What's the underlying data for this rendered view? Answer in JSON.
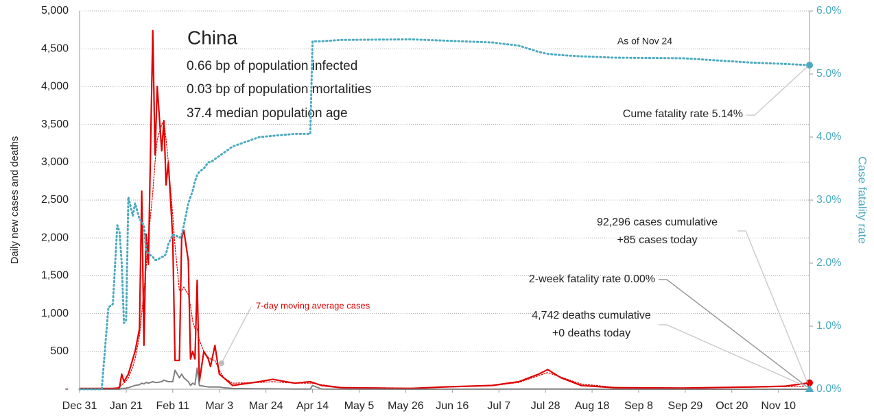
{
  "chart_data": {
    "type": "line",
    "title": "China",
    "subtitle_lines": [
      "0.66 bp of population infected",
      "0.03 bp of population mortalities",
      "37.4 median population age"
    ],
    "y_label": "Daily new cases and deaths",
    "y2_label": "Case fatality rate",
    "annotations": [
      "As of Nov 24",
      "Cume fatality rate 5.14%",
      "92,296 cases cumulative",
      "+85 cases today",
      "2-week fatality rate 0.00%",
      "4,742 deaths cumulative",
      "+0 deaths today"
    ],
    "two_week_fatality_rate": 0,
    "x": [
      0,
      10,
      13,
      15,
      17,
      18,
      19,
      20,
      21,
      22,
      24,
      25,
      27,
      28,
      29,
      30,
      31,
      33,
      34,
      35,
      37,
      38,
      39,
      40,
      42,
      43,
      45,
      46,
      47,
      49,
      50,
      51,
      52,
      53,
      54,
      56,
      58,
      59,
      61,
      63,
      65,
      69,
      81,
      87,
      97,
      104,
      105,
      109,
      118,
      149,
      164,
      186,
      198,
      207,
      211,
      217,
      226,
      241,
      272,
      303,
      318,
      329
    ],
    "xlim": [
      0,
      329
    ],
    "xticks": [
      {
        "value": 0,
        "label": "Dec 31"
      },
      {
        "value": 21,
        "label": "Jan 21"
      },
      {
        "value": 42,
        "label": "Feb 11"
      },
      {
        "value": 63,
        "label": "Mar 3"
      },
      {
        "value": 84,
        "label": "Mar 24"
      },
      {
        "value": 105,
        "label": "Apr 14"
      },
      {
        "value": 126,
        "label": "May 5"
      },
      {
        "value": 147,
        "label": "May 26"
      },
      {
        "value": 168,
        "label": "Jun 16"
      },
      {
        "value": 189,
        "label": "Jul 7"
      },
      {
        "value": 210,
        "label": "Jul 28"
      },
      {
        "value": 231,
        "label": "Aug 18"
      },
      {
        "value": 252,
        "label": "Sep 8"
      },
      {
        "value": 273,
        "label": "Sep 29"
      },
      {
        "value": 294,
        "label": "Oct 20"
      },
      {
        "value": 315,
        "label": "Nov 10"
      }
    ],
    "ylim": [
      0,
      5000
    ],
    "yticks": [
      {
        "value": 0,
        "label": "-"
      },
      500,
      {
        "value": 1000,
        "label": "1,000"
      },
      {
        "value": 1500,
        "label": "1,500"
      },
      {
        "value": 2000,
        "label": "2,000"
      },
      {
        "value": 2500,
        "label": "2,500"
      },
      {
        "value": 3000,
        "label": "3,000"
      },
      {
        "value": 3500,
        "label": "3,500"
      },
      {
        "value": 4000,
        "label": "4,000"
      },
      {
        "value": 4500,
        "label": "4,500"
      },
      {
        "value": 5000,
        "label": "5,000"
      }
    ],
    "y2lim": [
      0,
      6
    ],
    "y2ticks": [
      {
        "value": 0,
        "label": "0.0%"
      },
      {
        "value": 1,
        "label": "1.0%"
      },
      {
        "value": 2,
        "label": "2.0%"
      },
      {
        "value": 3,
        "label": "3.0%"
      },
      {
        "value": 4,
        "label": "4.0%"
      },
      {
        "value": 5,
        "label": "5.0%"
      },
      {
        "value": 6,
        "label": "6.0%"
      }
    ],
    "grid": true,
    "series": [
      {
        "color": "#e00000",
        "style": "solid",
        "width": 2.2,
        "values": [
          10,
          10,
          10,
          10,
          15,
          20,
          200,
          100,
          150,
          200,
          400,
          500,
          800,
          2620,
          580,
          2050,
          1650,
          4740,
          3100,
          4000,
          3150,
          3550,
          2700,
          3000,
          2000,
          380,
          380,
          2000,
          2100,
          1700,
          400,
          500,
          400,
          1440,
          100,
          500,
          400,
          300,
          580,
          200,
          150,
          50,
          100,
          130,
          80,
          100,
          90,
          50,
          20,
          10,
          30,
          50,
          100,
          200,
          260,
          150,
          50,
          20,
          15,
          30,
          40,
          85
        ]
      },
      {
        "name": "7-day moving average cases",
        "color": "#e00000",
        "style": "dotted",
        "width": 1.2,
        "values": [
          5,
          10,
          10,
          12,
          20,
          30,
          60,
          80,
          110,
          150,
          300,
          400,
          700,
          1000,
          1300,
          1600,
          2000,
          2600,
          3000,
          3300,
          3500,
          3550,
          3300,
          3000,
          2300,
          1900,
          1300,
          1300,
          1350,
          1250,
          1100,
          900,
          800,
          800,
          650,
          500,
          420,
          400,
          380,
          250,
          150,
          80,
          90,
          100,
          80,
          80,
          80,
          60,
          25,
          15,
          25,
          45,
          90,
          180,
          220,
          160,
          70,
          25,
          18,
          25,
          35,
          40
        ]
      },
      {
        "color": "#808080",
        "style": "solid",
        "width": 2,
        "values": [
          0,
          0,
          0,
          0,
          0,
          0,
          10,
          10,
          15,
          20,
          40,
          50,
          60,
          80,
          70,
          90,
          80,
          100,
          90,
          90,
          100,
          120,
          110,
          100,
          100,
          250,
          150,
          200,
          150,
          100,
          50,
          80,
          60,
          280,
          50,
          40,
          30,
          30,
          30,
          30,
          20,
          10,
          5,
          5,
          3,
          3,
          50,
          3,
          1,
          0,
          1,
          1,
          2,
          3,
          3,
          2,
          1,
          0,
          0,
          0,
          0,
          0
        ]
      },
      {
        "color": "#4aaabf",
        "style": "dotted",
        "width": 3,
        "axis": "y2",
        "values": [
          0,
          0,
          1.3,
          1.35,
          2.6,
          2.5,
          2.0,
          1.05,
          1.1,
          3.05,
          2.75,
          2.95,
          2.7,
          2.65,
          2.6,
          2.2,
          2.15,
          2.1,
          2.05,
          2.05,
          2.1,
          2.1,
          2.15,
          2.3,
          2.45,
          2.45,
          2.4,
          2.45,
          2.6,
          2.95,
          3.05,
          3.15,
          3.3,
          3.4,
          3.45,
          3.5,
          3.6,
          3.6,
          3.65,
          3.7,
          3.75,
          3.85,
          4.0,
          4.02,
          4.05,
          4.05,
          5.52,
          5.52,
          5.54,
          5.55,
          5.53,
          5.5,
          5.45,
          5.35,
          5.32,
          5.3,
          5.28,
          5.26,
          5.25,
          5.18,
          5.16,
          5.14
        ]
      }
    ]
  }
}
